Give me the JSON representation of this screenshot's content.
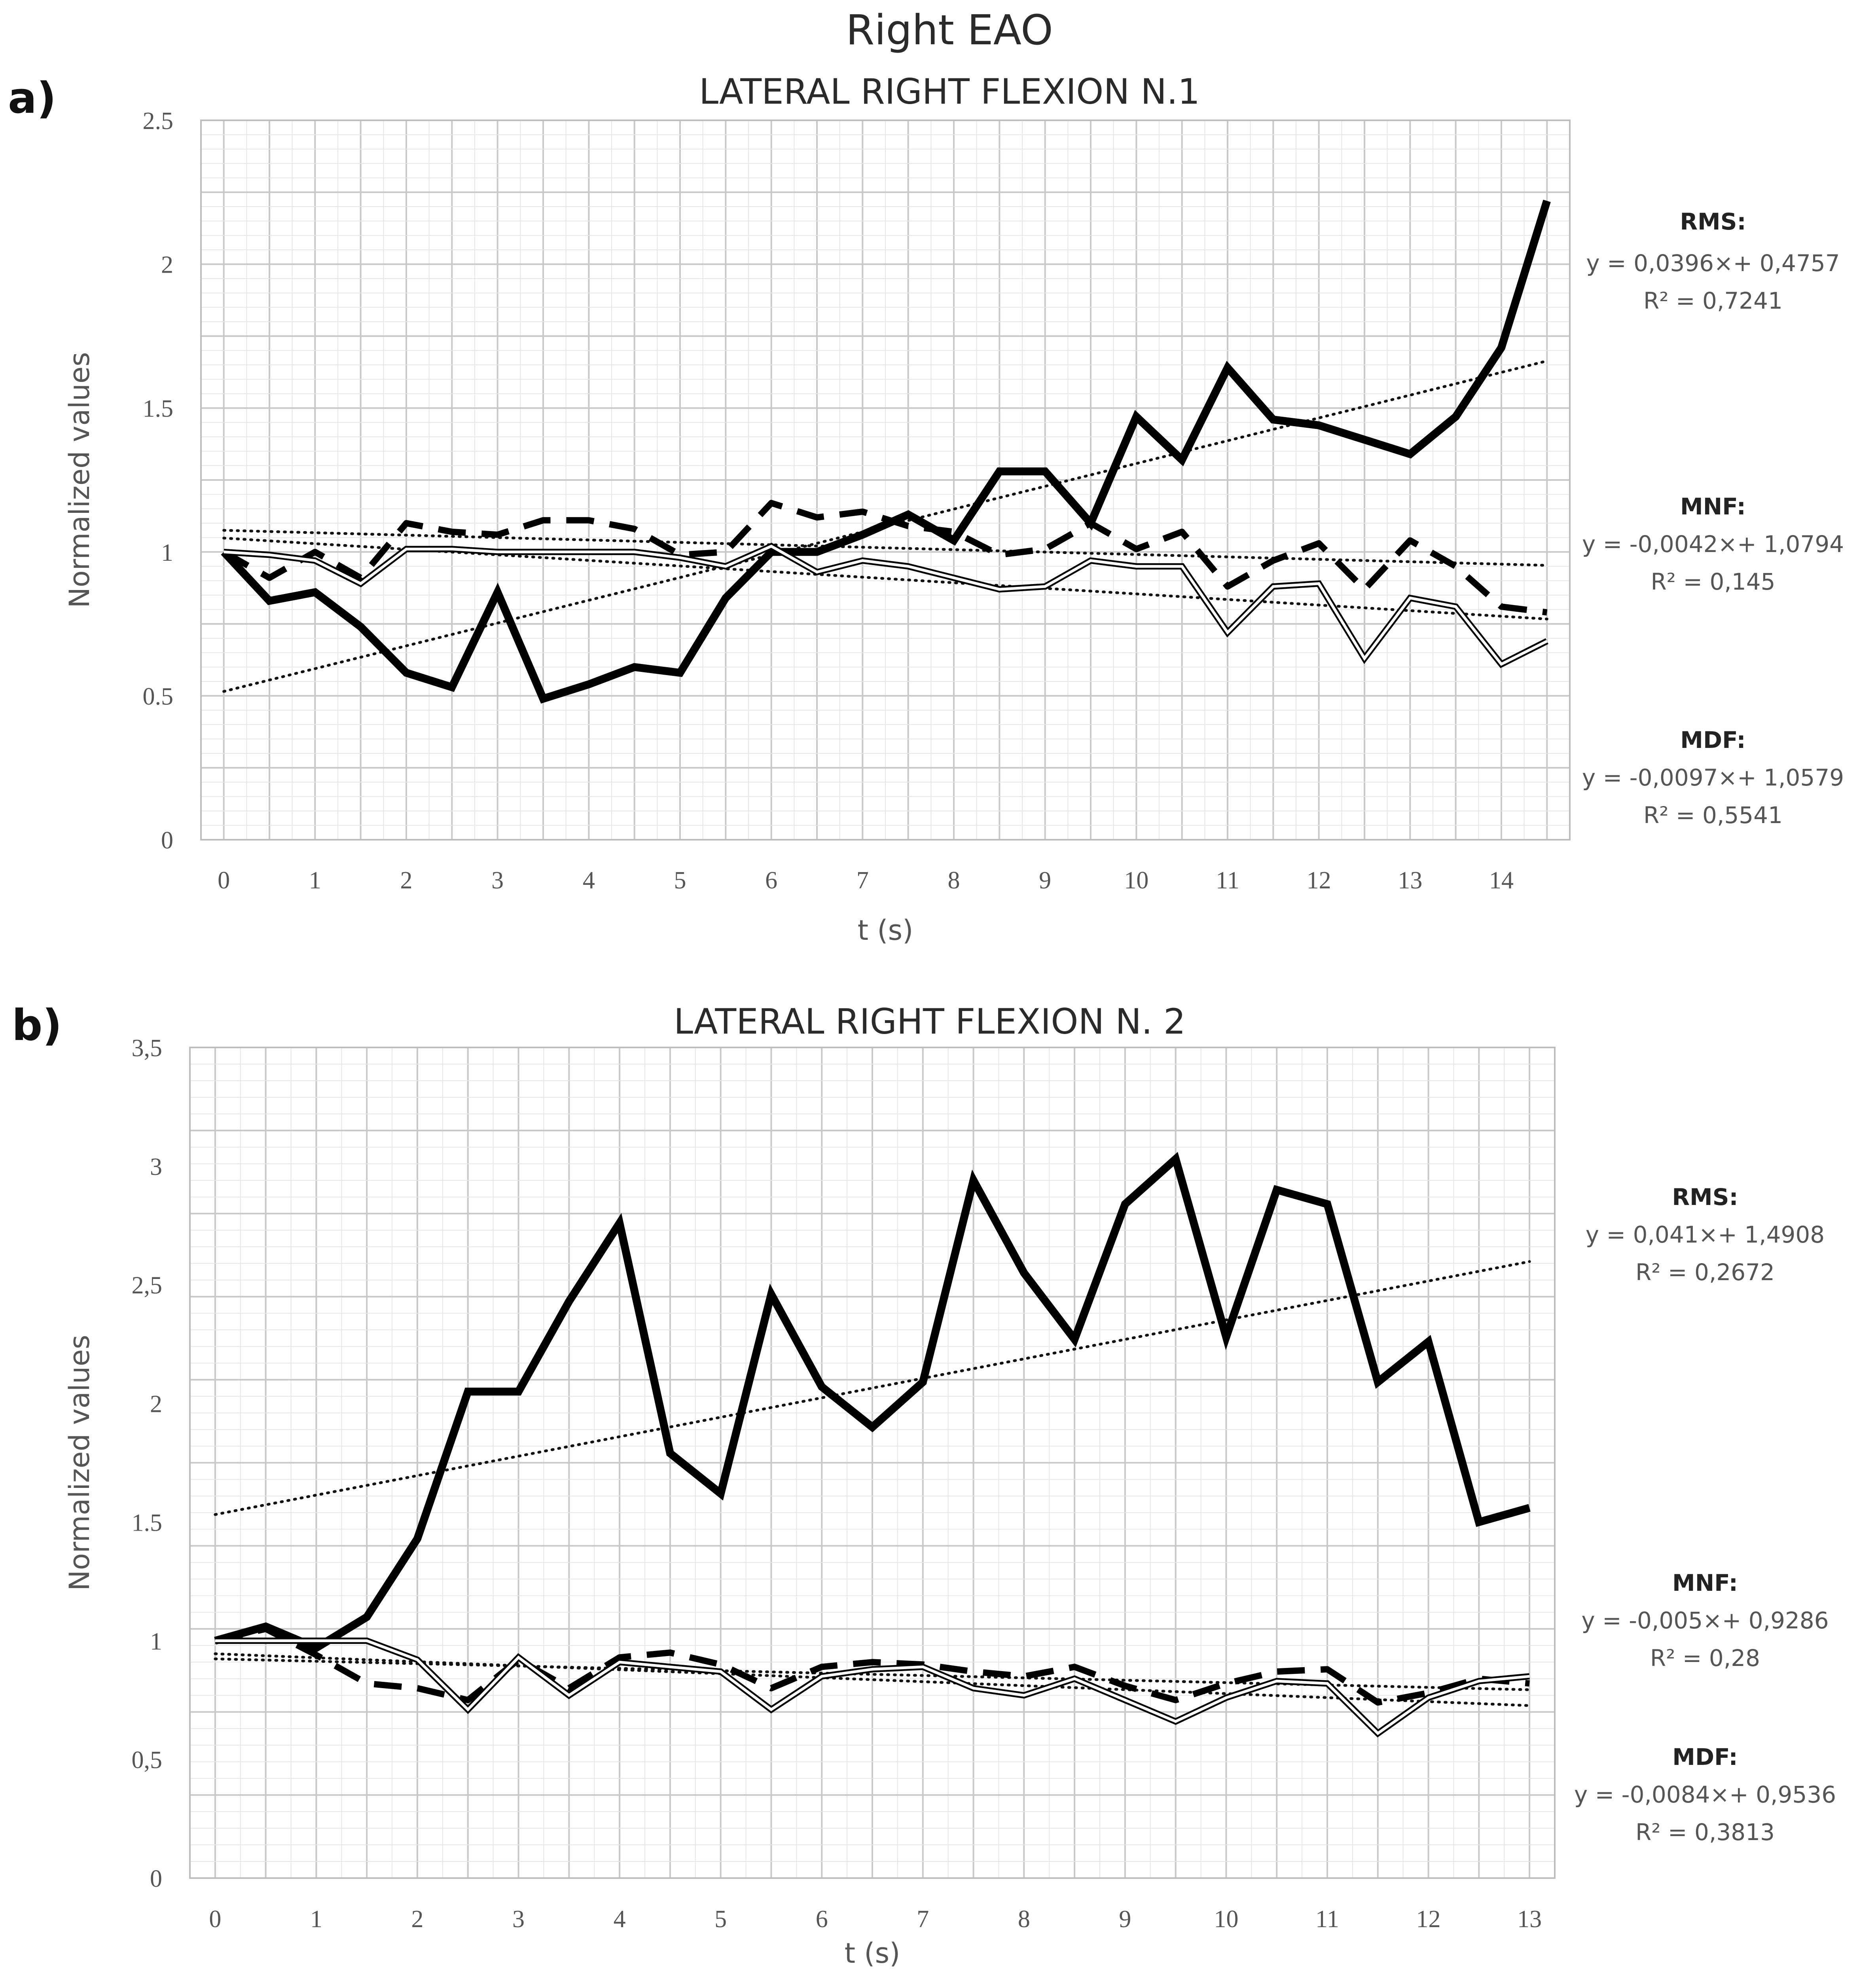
{
  "figure": {
    "title": "Right EAO"
  },
  "chart_data": [
    {
      "panel": "a)",
      "type": "line",
      "title": "LATERAL RIGHT FLEXION N.1",
      "xlabel": "t (s)",
      "ylabel": "Normalized values",
      "xlim": [
        -0.25,
        14.75
      ],
      "ylim": [
        0,
        2.5
      ],
      "xticks": [
        0,
        1,
        2,
        3,
        4,
        5,
        6,
        7,
        8,
        9,
        10,
        11,
        12,
        13,
        14
      ],
      "yticks": [
        0,
        0.5,
        1,
        1.5,
        2,
        2.5
      ],
      "ytick_labels": [
        "0",
        "0.5",
        "1",
        "1.5",
        "2",
        "2.5"
      ],
      "grid": true,
      "series": [
        {
          "name": "RMS",
          "style": "thick-solid",
          "x": [
            0,
            0.5,
            1,
            1.5,
            2,
            2.5,
            3,
            3.5,
            4,
            4.5,
            5,
            5.5,
            6,
            6.5,
            7,
            7.5,
            8,
            8.5,
            9,
            9.5,
            10,
            10.5,
            11,
            11.5,
            12,
            12.5,
            13,
            13.5,
            14,
            14.5
          ],
          "values": [
            1.0,
            0.83,
            0.86,
            0.74,
            0.58,
            0.53,
            0.86,
            0.49,
            0.54,
            0.6,
            0.58,
            0.84,
            1.0,
            1.0,
            1.06,
            1.13,
            1.04,
            1.28,
            1.28,
            1.1,
            1.47,
            1.32,
            1.64,
            1.46,
            1.44,
            1.39,
            1.34,
            1.47,
            1.71,
            2.22
          ]
        },
        {
          "name": "MNF",
          "style": "dashed",
          "x": [
            0,
            0.5,
            1,
            1.5,
            2,
            2.5,
            3,
            3.5,
            4,
            4.5,
            5,
            5.5,
            6,
            6.5,
            7,
            7.5,
            8,
            8.5,
            9,
            9.5,
            10,
            10.5,
            11,
            11.5,
            12,
            12.5,
            13,
            13.5,
            14,
            14.5
          ],
          "values": [
            1.0,
            0.91,
            1.0,
            0.91,
            1.1,
            1.07,
            1.06,
            1.11,
            1.11,
            1.08,
            0.99,
            1.0,
            1.17,
            1.12,
            1.14,
            1.09,
            1.07,
            0.99,
            1.01,
            1.1,
            1.01,
            1.07,
            0.88,
            0.97,
            1.03,
            0.87,
            1.04,
            0.95,
            0.81,
            0.79
          ]
        },
        {
          "name": "MDF",
          "style": "double-line",
          "x": [
            0,
            0.5,
            1,
            1.5,
            2,
            2.5,
            3,
            3.5,
            4,
            4.5,
            5,
            5.5,
            6,
            6.5,
            7,
            7.5,
            8,
            8.5,
            9,
            9.5,
            10,
            10.5,
            11,
            11.5,
            12,
            12.5,
            13,
            13.5,
            14,
            14.5
          ],
          "values": [
            1.0,
            0.99,
            0.97,
            0.89,
            1.01,
            1.01,
            1.0,
            1.0,
            1.0,
            1.0,
            0.98,
            0.95,
            1.02,
            0.93,
            0.97,
            0.95,
            0.91,
            0.87,
            0.88,
            0.97,
            0.95,
            0.95,
            0.72,
            0.88,
            0.89,
            0.63,
            0.84,
            0.81,
            0.61,
            0.69
          ]
        }
      ],
      "trendlines": [
        {
          "name": "RMS",
          "label": "RMS:",
          "equation": "y = 0,0396×+ 0,4757",
          "r2": "R² = 0,7241",
          "slope_per_sample": 0.0396,
          "intercept": 0.4757
        },
        {
          "name": "MNF",
          "label": "MNF:",
          "equation": "y = -0,0042×+ 1,0794",
          "r2": "R² = 0,145",
          "slope_per_sample": -0.0042,
          "intercept": 1.0794
        },
        {
          "name": "MDF",
          "label": "MDF:",
          "equation": "y = -0,0097×+ 1,0579",
          "r2": "R² = 0,5541",
          "slope_per_sample": -0.0097,
          "intercept": 1.0579
        }
      ]
    },
    {
      "panel": "b)",
      "type": "line",
      "title": "LATERAL RIGHT FLEXION N. 2",
      "xlabel": "t (s)",
      "ylabel": "Normalized values",
      "xlim": [
        -0.25,
        13.25
      ],
      "ylim": [
        0,
        3.5
      ],
      "xticks": [
        0,
        1,
        2,
        3,
        4,
        5,
        6,
        7,
        8,
        9,
        10,
        11,
        12,
        13
      ],
      "yticks": [
        0,
        0.5,
        1,
        1.5,
        2,
        2.5,
        3,
        3.5
      ],
      "ytick_labels": [
        "0",
        "0,5",
        "1",
        "1.5",
        "2",
        "2,5",
        "3",
        "3,5"
      ],
      "grid": true,
      "series": [
        {
          "name": "RMS",
          "style": "thick-solid",
          "x": [
            0,
            0.5,
            1,
            1.5,
            2,
            2.5,
            3,
            3.5,
            4,
            4.5,
            5,
            5.5,
            6,
            6.5,
            7,
            7.5,
            8,
            8.5,
            9,
            9.5,
            10,
            10.5,
            11,
            11.5,
            12,
            12.5,
            13
          ],
          "values": [
            1.0,
            1.06,
            0.97,
            1.1,
            1.43,
            2.05,
            2.05,
            2.43,
            2.76,
            1.79,
            1.62,
            2.46,
            2.07,
            1.9,
            2.09,
            2.94,
            2.55,
            2.27,
            2.84,
            3.03,
            2.28,
            2.9,
            2.84,
            2.09,
            2.26,
            1.5,
            1.56
          ]
        },
        {
          "name": "MNF",
          "style": "dashed",
          "x": [
            0,
            0.5,
            1,
            1.5,
            2,
            2.5,
            3,
            3.5,
            4,
            4.5,
            5,
            5.5,
            6,
            6.5,
            7,
            7.5,
            8,
            8.5,
            9,
            9.5,
            10,
            10.5,
            11,
            11.5,
            12,
            12.5,
            13
          ],
          "values": [
            1.0,
            1.05,
            0.94,
            0.82,
            0.8,
            0.75,
            0.92,
            0.8,
            0.93,
            0.95,
            0.9,
            0.8,
            0.89,
            0.91,
            0.9,
            0.87,
            0.85,
            0.89,
            0.81,
            0.75,
            0.82,
            0.87,
            0.88,
            0.74,
            0.78,
            0.84,
            0.82
          ]
        },
        {
          "name": "MDF",
          "style": "double-line",
          "x": [
            0,
            0.5,
            1,
            1.5,
            2,
            2.5,
            3,
            3.5,
            4,
            4.5,
            5,
            5.5,
            6,
            6.5,
            7,
            7.5,
            8,
            8.5,
            9,
            9.5,
            10,
            10.5,
            11,
            11.5,
            12,
            12.5,
            13
          ],
          "values": [
            1.0,
            1.0,
            1.0,
            1.0,
            0.92,
            0.71,
            0.93,
            0.77,
            0.91,
            0.89,
            0.87,
            0.71,
            0.85,
            0.88,
            0.89,
            0.8,
            0.77,
            0.84,
            0.75,
            0.66,
            0.76,
            0.83,
            0.82,
            0.61,
            0.76,
            0.83,
            0.85
          ]
        }
      ],
      "trendlines": [
        {
          "name": "RMS",
          "label": "RMS:",
          "equation": "y = 0,041×+ 1,4908",
          "r2": "R² = 0,2672",
          "slope_per_sample": 0.041,
          "intercept": 1.4908
        },
        {
          "name": "MNF",
          "label": "MNF:",
          "equation": "y = -0,005×+ 0,9286",
          "r2": "R² = 0,28",
          "slope_per_sample": -0.005,
          "intercept": 0.9286
        },
        {
          "name": "MDF",
          "label": "MDF:",
          "equation": "y = -0,0084×+ 0,9536",
          "r2": "R² = 0,3813",
          "slope_per_sample": -0.0084,
          "intercept": 0.9536
        }
      ]
    }
  ]
}
